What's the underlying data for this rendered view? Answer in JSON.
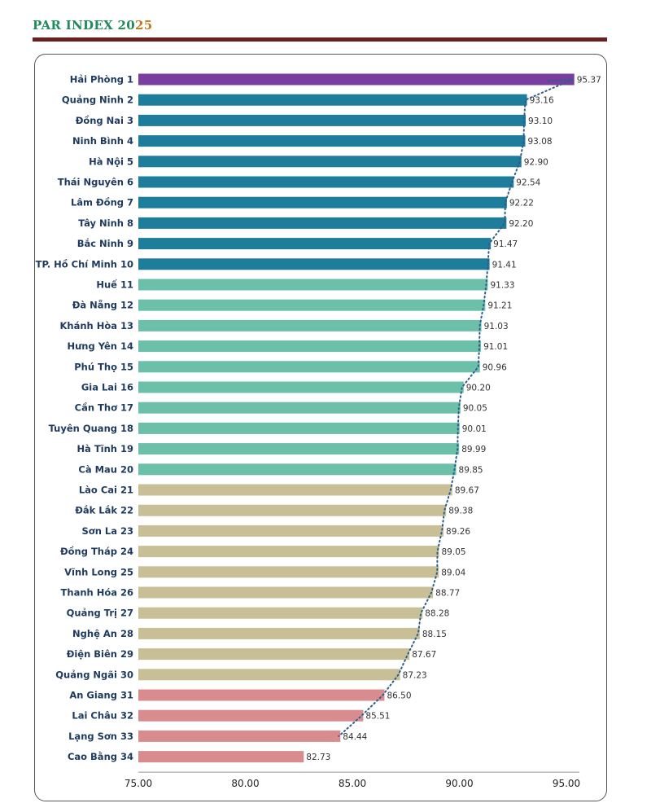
{
  "title": {
    "main": "PAR INDEX 20",
    "year_suffix": "25"
  },
  "colors": {
    "rank1": "#7a3da0",
    "top10": "#1f7d9c",
    "mid": "#6cbfa9",
    "lower": "#c8bf96",
    "bottom": "#d98c8e",
    "trend": "#2d5d8a"
  },
  "chart_data": {
    "type": "bar",
    "orientation": "horizontal",
    "categories": [
      "Hải Phòng 1",
      "Quảng Ninh 2",
      "Đồng Nai 3",
      "Ninh Bình 4",
      "Hà Nội 5",
      "Thái Nguyên 6",
      "Lâm Đồng 7",
      "Tây Ninh 8",
      "Bắc Ninh 9",
      "TP. Hồ Chí Minh 10",
      "Huế 11",
      "Đà Nẵng 12",
      "Khánh Hòa 13",
      "Hưng Yên 14",
      "Phú Thọ 15",
      "Gia Lai 16",
      "Cần Thơ 17",
      "Tuyên Quang 18",
      "Hà Tĩnh 19",
      "Cà Mau 20",
      "Lào Cai 21",
      "Đắk Lắk 22",
      "Sơn La 23",
      "Đồng Tháp 24",
      "Vĩnh Long 25",
      "Thanh Hóa 26",
      "Quảng Trị 27",
      "Nghệ An 28",
      "Điện Biên 29",
      "Quảng Ngãi 30",
      "An Giang 31",
      "Lai Châu 32",
      "Lạng Sơn 33",
      "Cao Bằng 34"
    ],
    "values": [
      95.37,
      93.16,
      93.1,
      93.08,
      92.9,
      92.54,
      92.22,
      92.2,
      91.47,
      91.41,
      91.33,
      91.21,
      91.03,
      91.01,
      90.96,
      90.2,
      90.05,
      90.01,
      89.99,
      89.85,
      89.67,
      89.38,
      89.26,
      89.05,
      89.04,
      88.77,
      88.28,
      88.15,
      87.67,
      87.23,
      86.5,
      85.51,
      84.44,
      82.73
    ],
    "value_labels": [
      "95.37",
      "93.16",
      "93.10",
      "93.08",
      "92.90",
      "92.54",
      "92.22",
      "92.20",
      "91.47",
      "91.41",
      "91.33",
      "91.21",
      "91.03",
      "91.01",
      "90.96",
      "90.20",
      "90.05",
      "90.01",
      "89.99",
      "89.85",
      "89.67",
      "89.38",
      "89.26",
      "89.05",
      "89.04",
      "88.77",
      "88.28",
      "88.15",
      "87.67",
      "87.23",
      "86.50",
      "85.51",
      "84.44",
      "82.73"
    ],
    "color_groups": [
      "rank1",
      "top10",
      "top10",
      "top10",
      "top10",
      "top10",
      "top10",
      "top10",
      "top10",
      "top10",
      "mid",
      "mid",
      "mid",
      "mid",
      "mid",
      "mid",
      "mid",
      "mid",
      "mid",
      "mid",
      "lower",
      "lower",
      "lower",
      "lower",
      "lower",
      "lower",
      "lower",
      "lower",
      "lower",
      "lower",
      "bottom",
      "bottom",
      "bottom",
      "bottom"
    ],
    "xlim": [
      75,
      96
    ],
    "xticks": [
      "75.00",
      "80.00",
      "85.00",
      "90.00",
      "95.00"
    ],
    "xtick_values": [
      75,
      80,
      85,
      90,
      95
    ],
    "trendline": "dotted",
    "xlabel": "",
    "ylabel": "",
    "grid": false,
    "legend": "none"
  }
}
